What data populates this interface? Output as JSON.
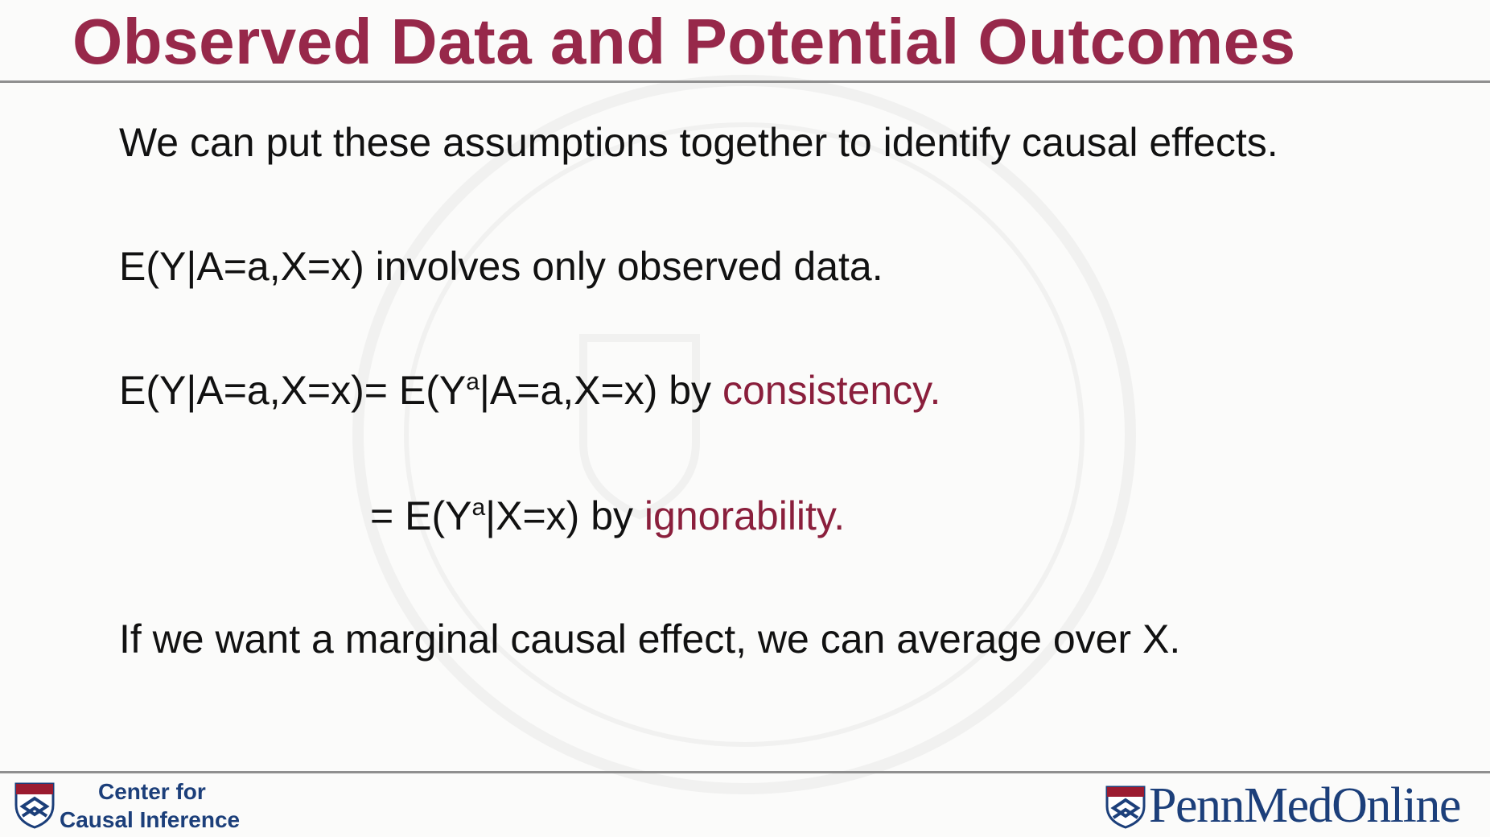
{
  "slide": {
    "title": "Observed Data and Potential Outcomes",
    "lines": {
      "l1": "We can put these assumptions together to identify causal effects.",
      "l2": "E(Y|A=a,X=x) involves only observed data.",
      "l3a": "E(Y|A=a,X=x)= E(Y",
      "l3sup": "a",
      "l3b": "|A=a,X=x) by ",
      "l3emph": "consistency.",
      "l4a": "= E(Y",
      "l4sup": "a",
      "l4b": "|X=x) by ",
      "l4emph": "ignorability.",
      "l5": "If we want a marginal causal effect, we can average over X."
    },
    "colors": {
      "title": "#97284a",
      "emphasis": "#8a1f3c",
      "footer_blue": "#1c3f7a"
    }
  },
  "footer": {
    "left_line1": "Center for",
    "left_line2": "Causal Inference",
    "right_brand": "PennMedOnline",
    "left_icon": "penn-shield-icon",
    "right_icon": "penn-shield-icon"
  }
}
